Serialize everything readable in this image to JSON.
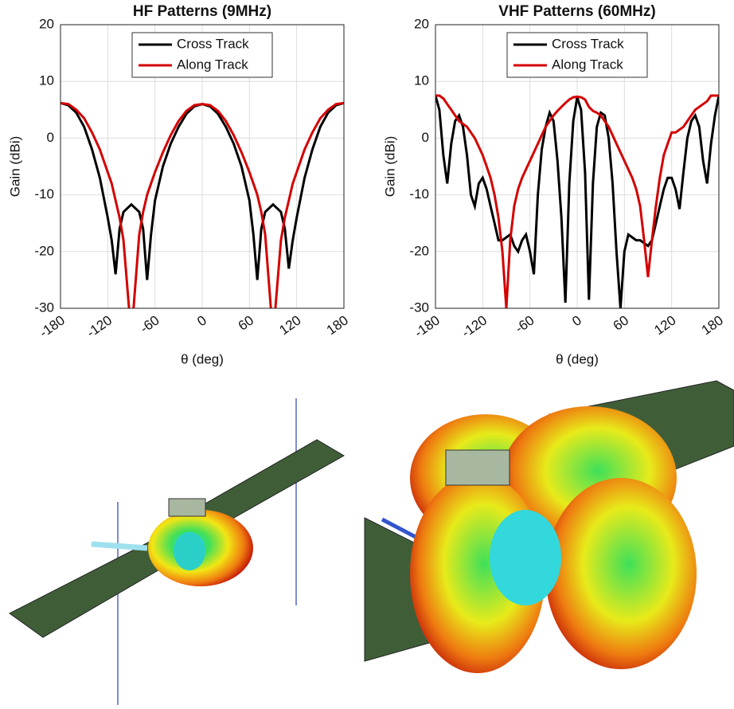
{
  "chart_data": [
    {
      "type": "line",
      "title": "HF Patterns (9MHz)",
      "ylabel": "Gain (dBi)",
      "xlabel": "θ (deg)",
      "x": [
        -180,
        -170,
        -160,
        -150,
        -140,
        -130,
        -120,
        -115,
        -110,
        -105,
        -100,
        -90,
        -80,
        -75,
        -70,
        -65,
        -60,
        -50,
        -40,
        -30,
        -20,
        -10,
        0,
        10,
        20,
        30,
        40,
        50,
        60,
        65,
        70,
        75,
        80,
        90,
        100,
        105,
        110,
        115,
        120,
        130,
        140,
        150,
        160,
        170,
        180
      ],
      "series": [
        {
          "name": "Cross Track",
          "color": "#000000",
          "values": [
            6.2,
            5.8,
            4.5,
            2,
            -2,
            -7,
            -14,
            -18,
            -24,
            -16,
            -13,
            -11.7,
            -13,
            -16,
            -25,
            -17,
            -11,
            -5,
            -1,
            2,
            4.3,
            5.6,
            6,
            5.6,
            4.3,
            2,
            -1,
            -5,
            -11,
            -17,
            -25,
            -16,
            -13,
            -11.7,
            -13,
            -16,
            -23,
            -18,
            -14,
            -7,
            -2,
            2,
            4.5,
            5.8,
            6.2
          ]
        },
        {
          "name": "Along Track",
          "color": "#d40000",
          "values": [
            6.2,
            6,
            5,
            3.5,
            1,
            -2,
            -6,
            -8,
            -11,
            -14,
            -18,
            -35,
            -17,
            -13,
            -10,
            -8,
            -6,
            -2.5,
            0.5,
            3,
            4.8,
            5.8,
            6,
            5.8,
            4.8,
            3,
            0.5,
            -2.5,
            -6,
            -8,
            -10,
            -13,
            -17,
            -35,
            -18,
            -14,
            -11,
            -8,
            -6,
            -2,
            1,
            3.5,
            5,
            6,
            6.2
          ]
        }
      ],
      "xlim": [
        -180,
        180
      ],
      "ylim": [
        -30,
        20
      ],
      "xticks": [
        -180,
        -120,
        -60,
        0,
        60,
        120,
        180
      ],
      "yticks": [
        -30,
        -20,
        -10,
        0,
        10,
        20
      ],
      "grid": true,
      "legend": "top"
    },
    {
      "type": "line",
      "title": "VHF Patterns (60MHz)",
      "ylabel": "Gain (dBi)",
      "xlabel": "θ (deg)",
      "x": [
        -180,
        -175,
        -170,
        -165,
        -160,
        -155,
        -150,
        -145,
        -140,
        -135,
        -130,
        -125,
        -120,
        -115,
        -110,
        -105,
        -100,
        -95,
        -90,
        -85,
        -80,
        -75,
        -70,
        -65,
        -60,
        -55,
        -50,
        -45,
        -40,
        -35,
        -30,
        -25,
        -20,
        -15,
        -10,
        -5,
        0,
        5,
        10,
        15,
        20,
        25,
        30,
        35,
        40,
        45,
        50,
        55,
        60,
        65,
        70,
        75,
        80,
        85,
        90,
        95,
        100,
        105,
        110,
        115,
        120,
        125,
        130,
        135,
        140,
        145,
        150,
        155,
        160,
        165,
        170,
        175,
        180
      ],
      "series": [
        {
          "name": "Cross Track",
          "color": "#000000",
          "values": [
            7.5,
            5,
            -3,
            -8,
            -1,
            3,
            4,
            2,
            -3,
            -10,
            -12,
            -8,
            -7,
            -9,
            -12,
            -15,
            -18,
            -18,
            -17.5,
            -17,
            -19,
            -20,
            -18,
            -17,
            -20,
            -24,
            -10,
            -2,
            2,
            4.5,
            3,
            -4,
            -14,
            -29,
            -8,
            3,
            7.2,
            5,
            -6,
            -28.5,
            -8,
            2,
            4.5,
            4,
            0,
            -8,
            -20,
            -30,
            -20,
            -17,
            -17.5,
            -18,
            -18,
            -18.5,
            -19,
            -18,
            -15,
            -12,
            -9,
            -7,
            -7,
            -9,
            -12.5,
            -6,
            0,
            3,
            4,
            2,
            -4,
            -8,
            -1,
            4,
            7.5
          ]
        },
        {
          "name": "Along Track",
          "color": "#d40000",
          "values": [
            7.5,
            7.5,
            7,
            6,
            5,
            4,
            3,
            2.5,
            2,
            1,
            0,
            -1.5,
            -3,
            -5,
            -7,
            -10,
            -14,
            -20,
            -30,
            -18,
            -12,
            -9,
            -7,
            -5.5,
            -4,
            -2.5,
            -1,
            0.5,
            2,
            3,
            4,
            4.8,
            5.5,
            6.2,
            6.8,
            7.2,
            7.3,
            7.2,
            6.8,
            5.5,
            4.8,
            4.5,
            4,
            3,
            2,
            0.5,
            -1,
            -2.5,
            -4,
            -5.5,
            -7,
            -9,
            -12,
            -18,
            -24.5,
            -18,
            -12,
            -7,
            -3,
            -1,
            1,
            1,
            1.5,
            2,
            3,
            4,
            5,
            5.5,
            6,
            6.5,
            7.5,
            7.5,
            7.5
          ]
        }
      ],
      "xlim": [
        -180,
        180
      ],
      "ylim": [
        -30,
        20
      ],
      "xticks": [
        -180,
        -120,
        -60,
        0,
        60,
        120,
        180
      ],
      "yticks": [
        -30,
        -20,
        -10,
        0,
        10,
        20
      ],
      "grid": true,
      "legend": "top"
    }
  ]
}
